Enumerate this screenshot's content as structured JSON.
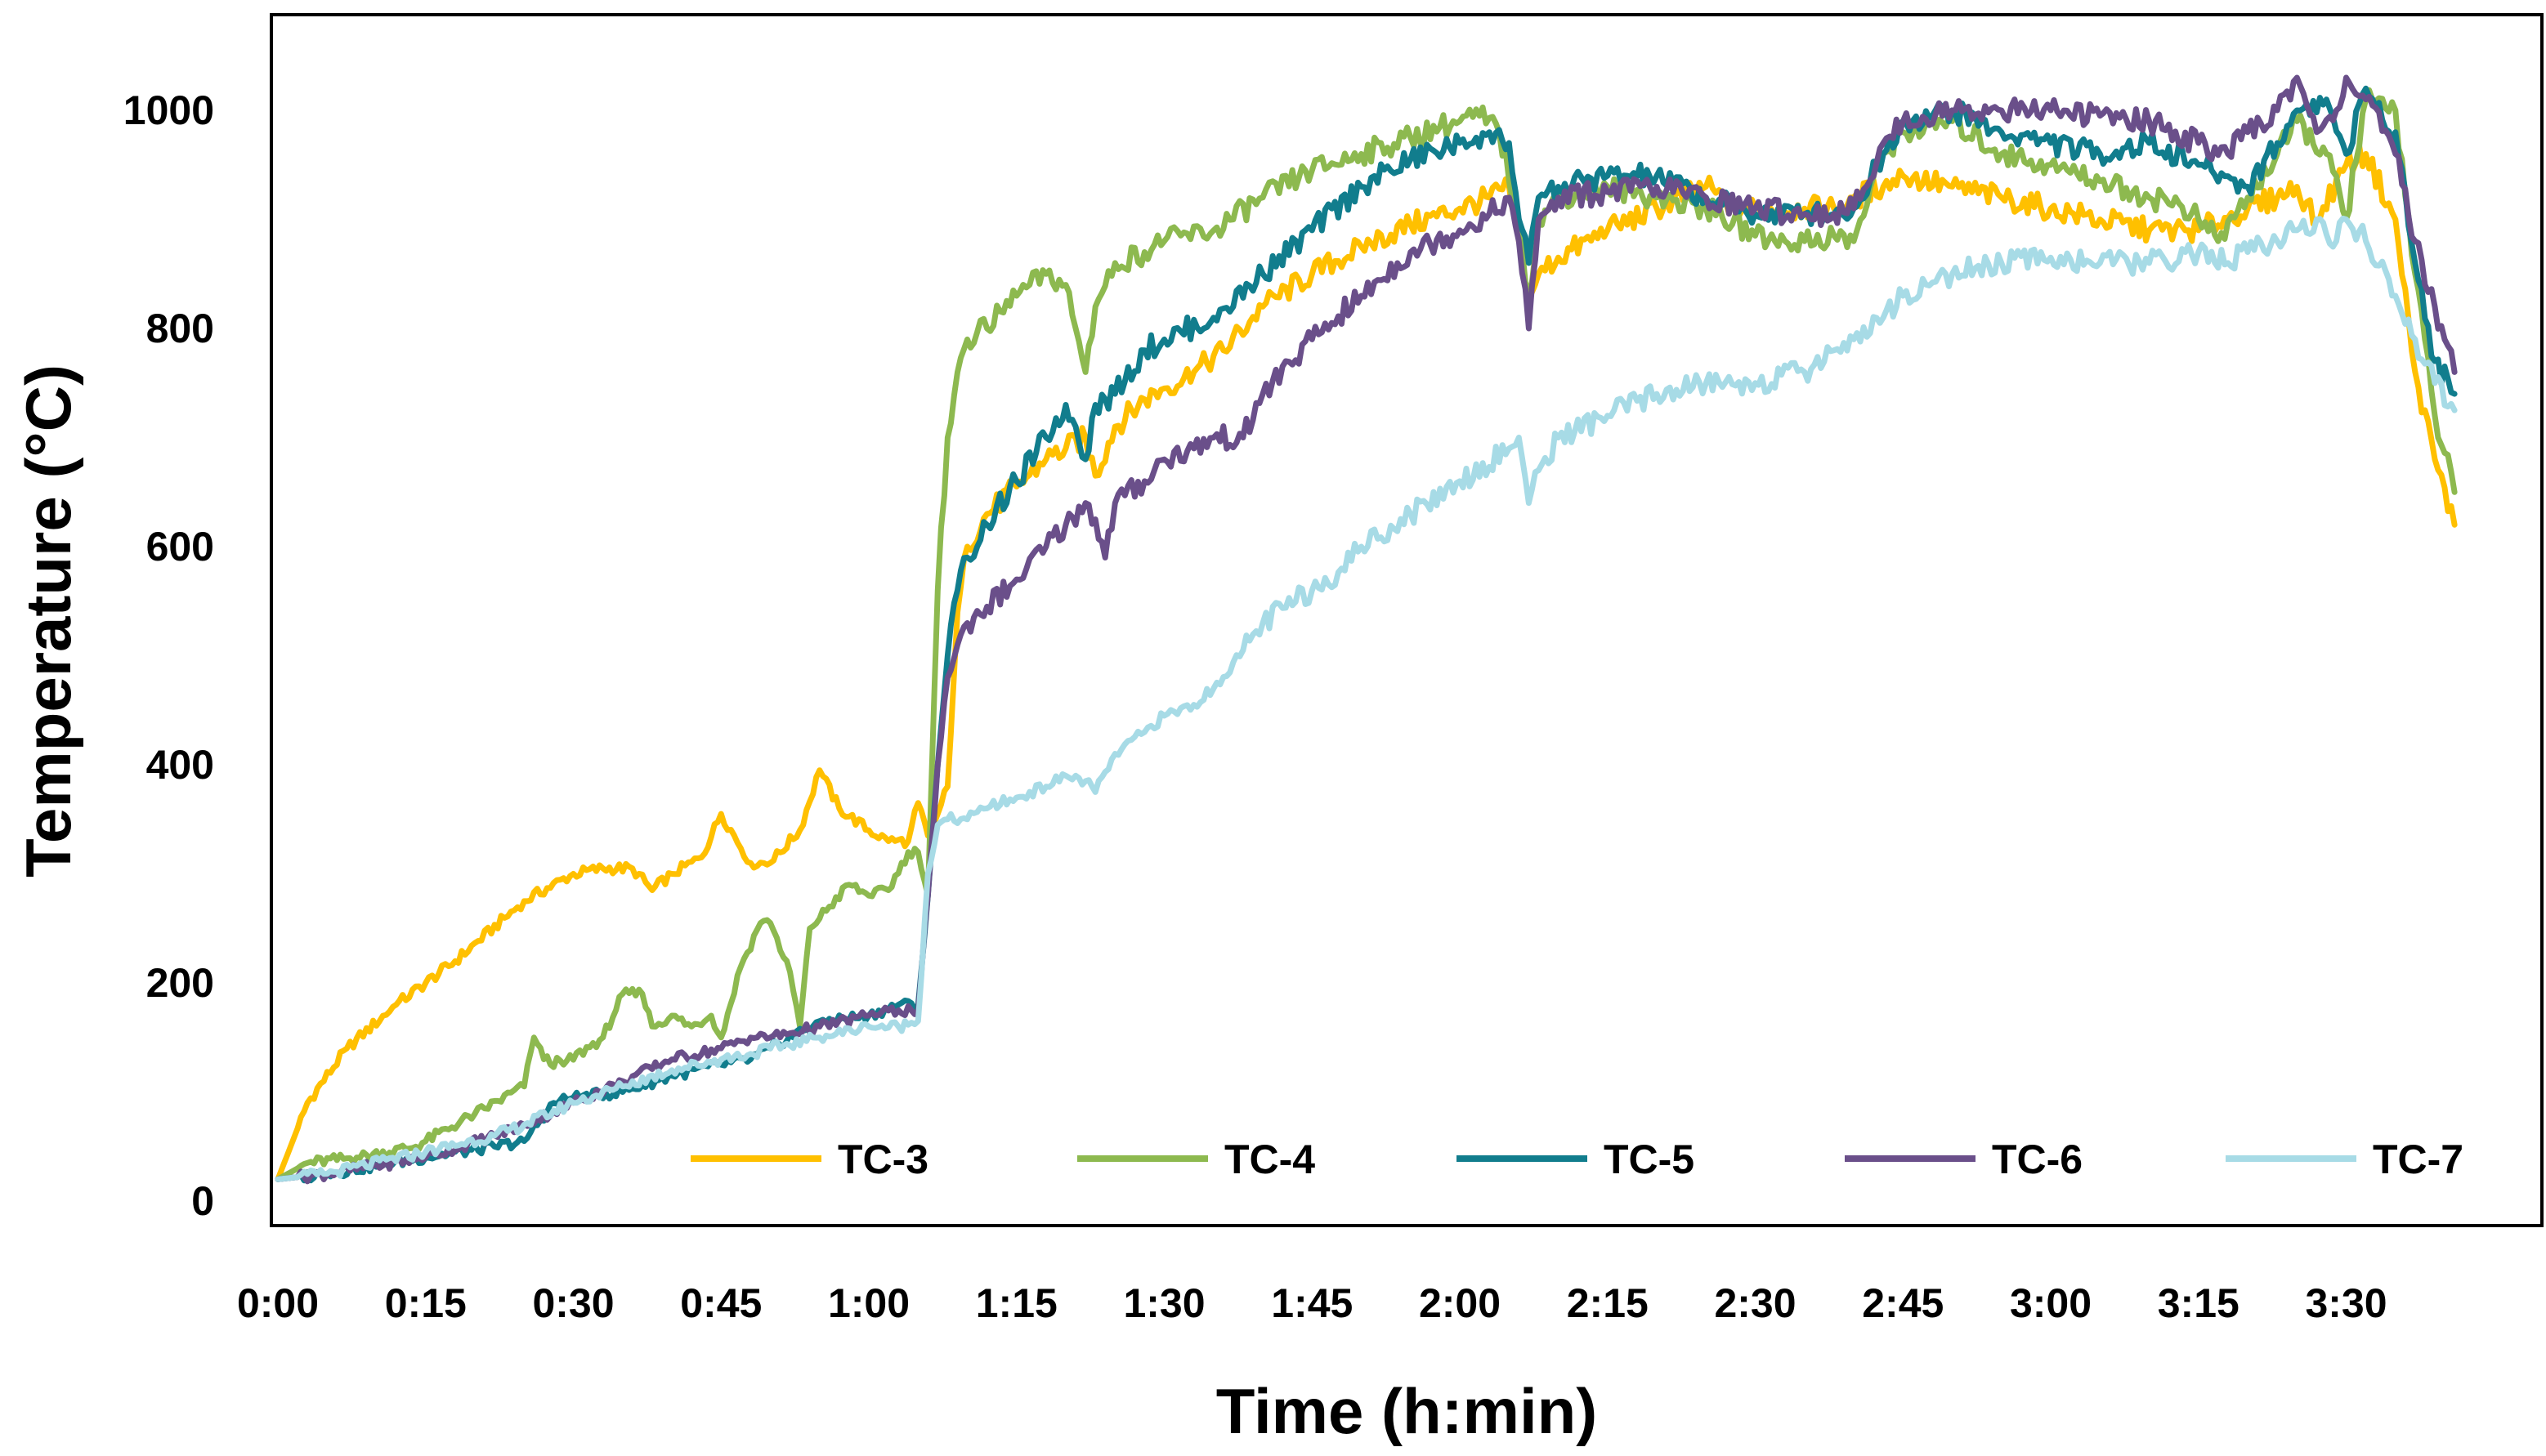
{
  "chart_data": {
    "type": "line",
    "xlabel": "Time (h:min)",
    "ylabel": "Temperature (°C)",
    "x_units": "minutes",
    "xlim": [
      0,
      227
    ],
    "ylim": [
      0,
      1100
    ],
    "x_ticks": [
      {
        "value": 0,
        "label": "0:00"
      },
      {
        "value": 15,
        "label": "0:15"
      },
      {
        "value": 30,
        "label": "0:30"
      },
      {
        "value": 45,
        "label": "0:45"
      },
      {
        "value": 60,
        "label": "1:00"
      },
      {
        "value": 75,
        "label": "1:15"
      },
      {
        "value": 90,
        "label": "1:30"
      },
      {
        "value": 105,
        "label": "1:45"
      },
      {
        "value": 120,
        "label": "2:00"
      },
      {
        "value": 135,
        "label": "2:15"
      },
      {
        "value": 150,
        "label": "2:30"
      },
      {
        "value": 165,
        "label": "2:45"
      },
      {
        "value": 180,
        "label": "3:00"
      },
      {
        "value": 195,
        "label": "3:15"
      },
      {
        "value": 210,
        "label": "3:30"
      }
    ],
    "y_ticks": [
      {
        "value": 0,
        "label": "0"
      },
      {
        "value": 200,
        "label": "200"
      },
      {
        "value": 400,
        "label": "400"
      },
      {
        "value": 600,
        "label": "600"
      },
      {
        "value": 800,
        "label": "800"
      },
      {
        "value": 1000,
        "label": "1000"
      }
    ],
    "grid": false,
    "legend": "bottom, inside plot, single row",
    "series": [
      {
        "name": "TC-3",
        "color": "#FFC000",
        "x": [
          0,
          3,
          7,
          12,
          18,
          25,
          30,
          33,
          36,
          38,
          40,
          43,
          45,
          48,
          50,
          53,
          55,
          57,
          60,
          62,
          64,
          65,
          66,
          67,
          68,
          69,
          70,
          72,
          75,
          78,
          80,
          82,
          83,
          85,
          88,
          90,
          93,
          96,
          100,
          105,
          110,
          115,
          120,
          123,
          125,
          126,
          127,
          128,
          130,
          135,
          140,
          145,
          148,
          150,
          155,
          158,
          160,
          163,
          165,
          170,
          175,
          180,
          185,
          190,
          195,
          200,
          203,
          205,
          207,
          210,
          212,
          215,
          217,
          219,
          221
        ],
        "y": [
          20,
          90,
          140,
          180,
          220,
          275,
          300,
          305,
          305,
          285,
          300,
          315,
          355,
          310,
          310,
          340,
          395,
          360,
          340,
          330,
          330,
          365,
          335,
          355,
          380,
          540,
          600,
          630,
          655,
          680,
          690,
          700,
          665,
          710,
          735,
          745,
          760,
          780,
          820,
          850,
          875,
          895,
          910,
          920,
          930,
          880,
          830,
          850,
          865,
          890,
          910,
          930,
          910,
          910,
          910,
          910,
          920,
          930,
          940,
          930,
          920,
          910,
          900,
          890,
          890,
          910,
          920,
          930,
          900,
          950,
          960,
          900,
          760,
          680,
          620
        ]
      },
      {
        "name": "TC-4",
        "color": "#8DB94F",
        "x": [
          0,
          3,
          8,
          14,
          20,
          25,
          26,
          27,
          29,
          33,
          35,
          37,
          38,
          40,
          42,
          44,
          45,
          47,
          49,
          50,
          52,
          53,
          54,
          56,
          58,
          60,
          62,
          64,
          65,
          66,
          67,
          68,
          69,
          70,
          72,
          75,
          78,
          80,
          81,
          82,
          83,
          85,
          88,
          90,
          95,
          100,
          105,
          110,
          115,
          118,
          120,
          122,
          124,
          126,
          127,
          128,
          130,
          135,
          140,
          145,
          150,
          152,
          155,
          158,
          160,
          163,
          165,
          170,
          175,
          180,
          185,
          190,
          193,
          195,
          197,
          200,
          203,
          205,
          208,
          210,
          212,
          215,
          217,
          219,
          221
        ],
        "y": [
          20,
          35,
          40,
          50,
          80,
          105,
          150,
          130,
          125,
          150,
          190,
          190,
          160,
          170,
          160,
          170,
          150,
          215,
          255,
          255,
          210,
          160,
          250,
          270,
          290,
          280,
          285,
          320,
          320,
          280,
          560,
          700,
          760,
          790,
          800,
          830,
          850,
          840,
          800,
          760,
          820,
          860,
          870,
          880,
          890,
          920,
          945,
          960,
          975,
          985,
          990,
          995,
          980,
          900,
          830,
          900,
          920,
          930,
          920,
          910,
          885,
          880,
          880,
          885,
          880,
          960,
          980,
          990,
          960,
          950,
          935,
          920,
          915,
          900,
          880,
          920,
          960,
          990,
          960,
          900,
          1010,
          1000,
          850,
          720,
          650
        ]
      },
      {
        "name": "TC-5",
        "color": "#117D8D",
        "x": [
          0,
          5,
          15,
          22,
          25,
          28,
          30,
          35,
          40,
          45,
          48,
          50,
          55,
          60,
          63,
          65,
          66,
          67,
          68,
          69,
          70,
          72,
          75,
          78,
          80,
          81,
          82,
          83,
          85,
          88,
          90,
          95,
          100,
          105,
          110,
          115,
          120,
          123,
          125,
          126,
          127,
          128,
          130,
          135,
          140,
          145,
          150,
          155,
          158,
          160,
          163,
          165,
          170,
          175,
          180,
          185,
          190,
          195,
          200,
          203,
          205,
          208,
          210,
          212,
          215,
          217,
          219,
          221
        ],
        "y": [
          20,
          25,
          40,
          50,
          55,
          90,
          95,
          100,
          115,
          125,
          130,
          140,
          165,
          170,
          180,
          180,
          280,
          400,
          500,
          560,
          590,
          620,
          660,
          700,
          730,
          710,
          680,
          730,
          740,
          780,
          790,
          810,
          850,
          890,
          930,
          955,
          970,
          980,
          970,
          900,
          860,
          920,
          930,
          940,
          940,
          920,
          905,
          905,
          905,
          910,
          960,
          990,
          1000,
          980,
          970,
          960,
          970,
          950,
          930,
          970,
          1000,
          1010,
          960,
          1020,
          980,
          860,
          770,
          740
        ]
      },
      {
        "name": "TC-6",
        "color": "#6A4F8A",
        "x": [
          0,
          5,
          15,
          22,
          25,
          30,
          35,
          40,
          45,
          48,
          50,
          55,
          60,
          63,
          65,
          66,
          67,
          68,
          69,
          70,
          72,
          75,
          78,
          80,
          82,
          83,
          84,
          85,
          88,
          90,
          93,
          95,
          98,
          100,
          105,
          110,
          115,
          120,
          123,
          125,
          126,
          127,
          128,
          130,
          135,
          140,
          145,
          150,
          155,
          158,
          160,
          163,
          165,
          170,
          175,
          180,
          185,
          190,
          195,
          198,
          200,
          203,
          205,
          207,
          209,
          210,
          212,
          215,
          217,
          219,
          221
        ],
        "y": [
          20,
          25,
          40,
          60,
          70,
          90,
          110,
          130,
          140,
          150,
          150,
          160,
          170,
          175,
          175,
          280,
          400,
          480,
          510,
          530,
          545,
          570,
          600,
          620,
          640,
          625,
          590,
          640,
          660,
          680,
          690,
          700,
          700,
          740,
          790,
          830,
          870,
          890,
          905,
          920,
          880,
          800,
          900,
          920,
          925,
          930,
          920,
          910,
          905,
          905,
          910,
          970,
          990,
          1000,
          1000,
          1000,
          995,
          990,
          970,
          960,
          980,
          1000,
          1030,
          980,
          1000,
          1030,
          1010,
          960,
          880,
          820,
          760
        ]
      },
      {
        "name": "TC-7",
        "color": "#A7DBE6",
        "x": [
          0,
          5,
          15,
          22,
          25,
          30,
          35,
          40,
          45,
          48,
          50,
          55,
          60,
          63,
          65,
          66,
          67,
          68,
          70,
          72,
          75,
          78,
          80,
          82,
          83,
          85,
          88,
          90,
          93,
          95,
          98,
          100,
          105,
          108,
          110,
          115,
          120,
          125,
          126,
          127,
          128,
          130,
          135,
          140,
          145,
          150,
          155,
          158,
          160,
          163,
          165,
          170,
          175,
          180,
          185,
          190,
          195,
          198,
          200,
          203,
          205,
          207,
          209,
          210,
          212,
          215,
          217,
          219,
          221
        ],
        "y": [
          20,
          25,
          45,
          60,
          70,
          90,
          105,
          120,
          130,
          135,
          140,
          150,
          160,
          160,
          165,
          300,
          345,
          350,
          350,
          360,
          370,
          380,
          390,
          385,
          375,
          410,
          430,
          445,
          455,
          470,
          505,
          530,
          560,
          580,
          600,
          630,
          660,
          690,
          700,
          640,
          670,
          700,
          720,
          740,
          750,
          750,
          760,
          780,
          790,
          810,
          830,
          850,
          860,
          865,
          860,
          860,
          870,
          860,
          870,
          880,
          890,
          900,
          880,
          900,
          880,
          830,
          790,
          750,
          725
        ]
      }
    ]
  }
}
